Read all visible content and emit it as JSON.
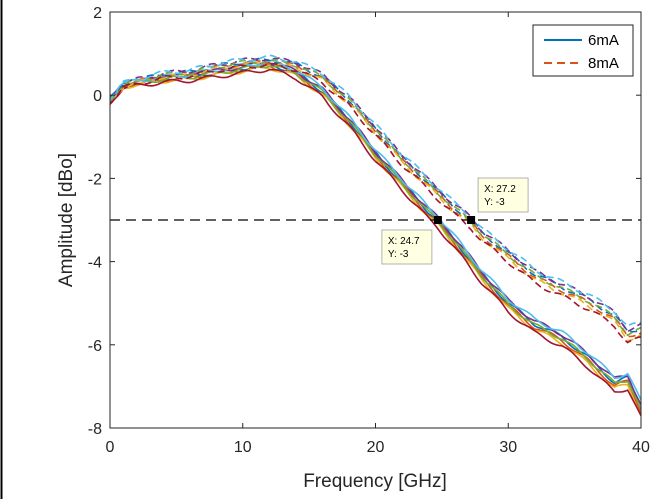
{
  "chart_data": {
    "type": "line",
    "title": "",
    "xlabel": "Frequency [GHz]",
    "ylabel": "Amplitude [dBo]",
    "xlim": [
      0,
      40
    ],
    "ylim": [
      -8,
      2
    ],
    "xticks": [
      "0",
      "10",
      "20",
      "30",
      "40"
    ],
    "yticks": [
      "2",
      "0",
      "-2",
      "-4",
      "-6",
      "-8"
    ],
    "grid": false,
    "legend_position": "top-right",
    "legend": [
      {
        "label": "6mA",
        "color": "#0072BD",
        "style": "solid"
      },
      {
        "label": "8mA",
        "color": "#D95319",
        "style": "dashed"
      }
    ],
    "reference_line": {
      "y": -3,
      "style": "dashed",
      "color": "#000000"
    },
    "datatips": [
      {
        "x_text": "X: 24.7",
        "y_text": "Y: -3",
        "x": 24.7,
        "y": -3
      },
      {
        "x_text": "X: 27.2",
        "y_text": "Y: -3",
        "x": 27.2,
        "y": -3
      }
    ],
    "series_groups": [
      {
        "name": "6mA",
        "style": "solid",
        "colors": [
          "#0072BD",
          "#D95319",
          "#EDB120",
          "#7E2F8E",
          "#77AC30",
          "#A2142F",
          "#4DBEEE"
        ],
        "offsets": [
          0.0,
          -0.07,
          -0.13,
          0.06,
          -0.03,
          -0.2,
          0.1
        ],
        "x": [
          0,
          1,
          2,
          4,
          6,
          8,
          10,
          12,
          14,
          16,
          18,
          20,
          22,
          24,
          24.7,
          26,
          28,
          30,
          32,
          34,
          36,
          38,
          39,
          40
        ],
        "y": [
          -0.1,
          0.25,
          0.3,
          0.4,
          0.45,
          0.55,
          0.65,
          0.75,
          0.55,
          0.1,
          -0.6,
          -1.4,
          -2.1,
          -2.8,
          -3.0,
          -3.5,
          -4.3,
          -5.0,
          -5.5,
          -5.8,
          -6.3,
          -6.9,
          -6.8,
          -7.5
        ]
      },
      {
        "name": "8mA",
        "style": "dashed",
        "colors": [
          "#0072BD",
          "#D95319",
          "#EDB120",
          "#7E2F8E",
          "#77AC30",
          "#A2142F",
          "#4DBEEE"
        ],
        "offsets": [
          0.0,
          -0.07,
          -0.13,
          0.06,
          -0.03,
          -0.2,
          0.1
        ],
        "x": [
          0,
          1,
          2,
          4,
          6,
          8,
          10,
          12,
          14,
          16,
          18,
          20,
          22,
          24,
          26,
          27.2,
          28,
          30,
          32,
          34,
          36,
          38,
          39,
          40
        ],
        "y": [
          -0.1,
          0.25,
          0.35,
          0.5,
          0.55,
          0.7,
          0.8,
          0.85,
          0.75,
          0.45,
          -0.1,
          -0.8,
          -1.5,
          -2.1,
          -2.7,
          -3.0,
          -3.3,
          -3.8,
          -4.3,
          -4.6,
          -4.9,
          -5.3,
          -5.7,
          -5.6
        ]
      }
    ]
  }
}
